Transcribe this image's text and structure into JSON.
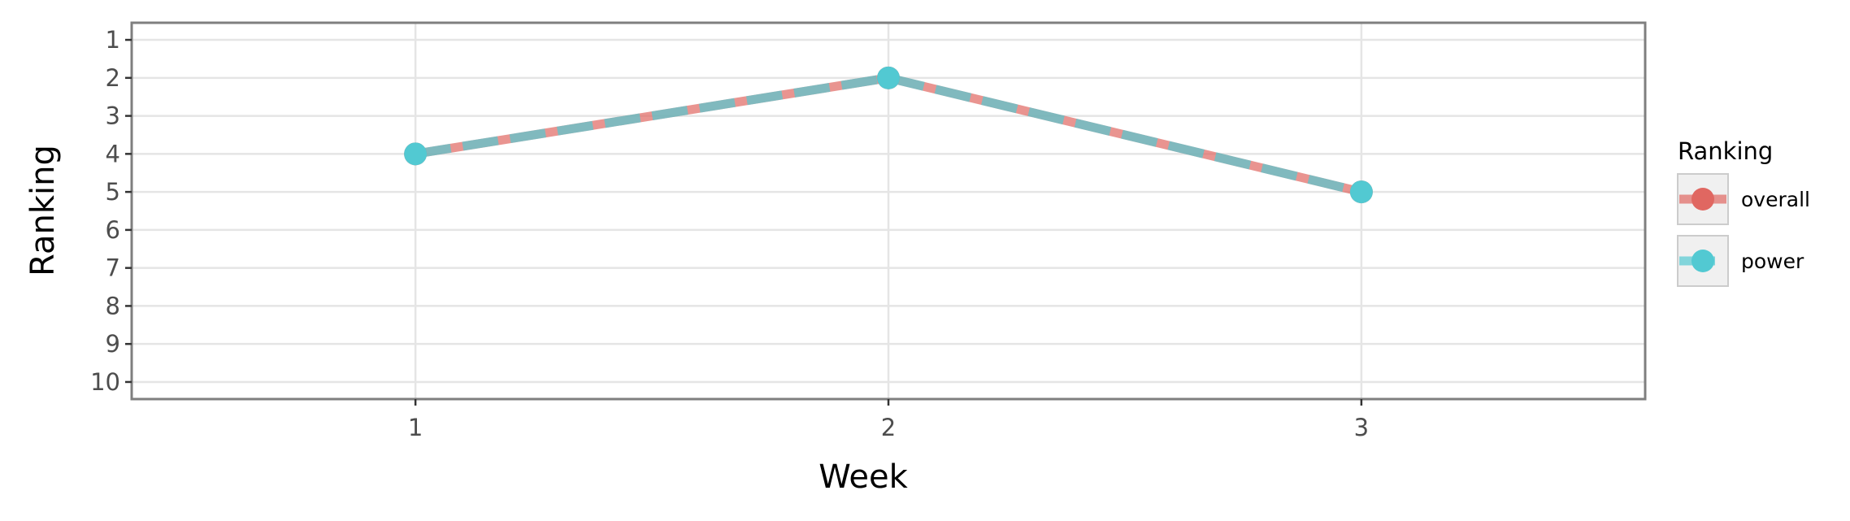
{
  "chart_data": {
    "type": "line",
    "xlabel": "Week",
    "ylabel": "Ranking",
    "x": [
      1,
      2,
      3
    ],
    "x_ticks": [
      "1",
      "2",
      "3"
    ],
    "xlim": [
      0.4,
      3.6
    ],
    "y_ticks": [
      "1",
      "2",
      "3",
      "4",
      "5",
      "6",
      "7",
      "8",
      "9",
      "10"
    ],
    "ylim": [
      0.55,
      10.45
    ],
    "y_reversed": true,
    "grid": true,
    "legend": {
      "title": "Ranking",
      "placement": "right"
    },
    "series": [
      {
        "name": "overall",
        "values": [
          4,
          2,
          5
        ],
        "color": "#e06761",
        "line_style": "solid",
        "opacity": 0.7
      },
      {
        "name": "power",
        "values": [
          4,
          2,
          5
        ],
        "color": "#52c9d2",
        "line_style": "dashed",
        "opacity": 0.7
      }
    ]
  }
}
